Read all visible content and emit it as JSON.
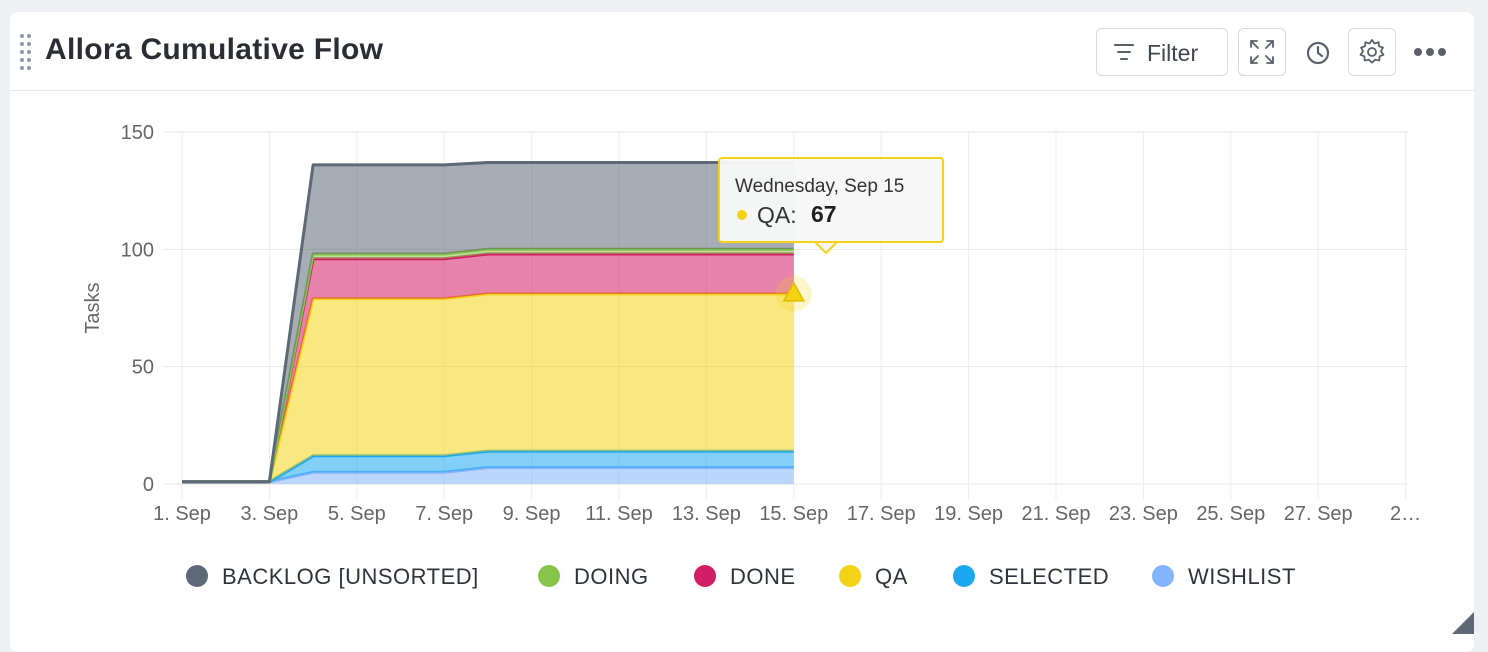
{
  "widget": {
    "title": "Allora Cumulative Flow",
    "filter_label": "Filter",
    "icons": [
      "drag-handle-icon",
      "filter-icon",
      "expand-icon",
      "clock-icon",
      "gear-icon",
      "more-icon"
    ]
  },
  "tooltip": {
    "date": "Wednesday, Sep 15",
    "series": "QA:",
    "value": "67"
  },
  "chart_data": {
    "type": "area",
    "stacked": true,
    "ylabel": "Tasks",
    "xlabel": "",
    "ylim": [
      0,
      150
    ],
    "yticks": [
      "0",
      "50",
      "100",
      "150"
    ],
    "x": [
      "1. Sep",
      "2. Sep",
      "3. Sep",
      "4. Sep",
      "5. Sep",
      "6. Sep",
      "7. Sep",
      "8. Sep",
      "9. Sep",
      "10. Sep",
      "11. Sep",
      "12. Sep",
      "13. Sep",
      "14. Sep",
      "15. Sep"
    ],
    "xtick_labels": [
      "1. Sep",
      "3. Sep",
      "5. Sep",
      "7. Sep",
      "9. Sep",
      "11. Sep",
      "13. Sep",
      "15. Sep",
      "17. Sep",
      "19. Sep",
      "21. Sep",
      "23. Sep",
      "25. Sep",
      "27. Sep",
      "2…"
    ],
    "x_range_days": 28,
    "grid": true,
    "legend_position": "bottom",
    "series": [
      {
        "name": "WISHLIST",
        "color": "#84b4fb",
        "values": [
          1,
          1,
          1,
          5,
          5,
          5,
          5,
          7,
          7,
          7,
          7,
          7,
          7,
          7,
          7
        ]
      },
      {
        "name": "SELECTED",
        "color": "#1ba8f0",
        "values": [
          0,
          0,
          0,
          7,
          7,
          7,
          7,
          7,
          7,
          7,
          7,
          7,
          7,
          7,
          7
        ]
      },
      {
        "name": "QA",
        "color": "#f4d316",
        "values": [
          0,
          0,
          0,
          67,
          67,
          67,
          67,
          67,
          67,
          67,
          67,
          67,
          67,
          67,
          67
        ]
      },
      {
        "name": "DONE",
        "color": "#d31c66",
        "values": [
          0,
          0,
          0,
          17,
          17,
          17,
          17,
          17,
          17,
          17,
          17,
          17,
          17,
          17,
          17
        ]
      },
      {
        "name": "DOING",
        "color": "#86c54a",
        "values": [
          0,
          0,
          0,
          2,
          2,
          2,
          2,
          2,
          2,
          2,
          2,
          2,
          2,
          2,
          2
        ]
      },
      {
        "name": "BACKLOG [UNSORTED]",
        "color": "#5d6977",
        "values": [
          0,
          0,
          0,
          38,
          38,
          38,
          38,
          37,
          37,
          37,
          37,
          37,
          37,
          37,
          37
        ]
      }
    ],
    "legend_order": [
      "BACKLOG [UNSORTED]",
      "DOING",
      "DONE",
      "QA",
      "SELECTED",
      "WISHLIST"
    ]
  }
}
